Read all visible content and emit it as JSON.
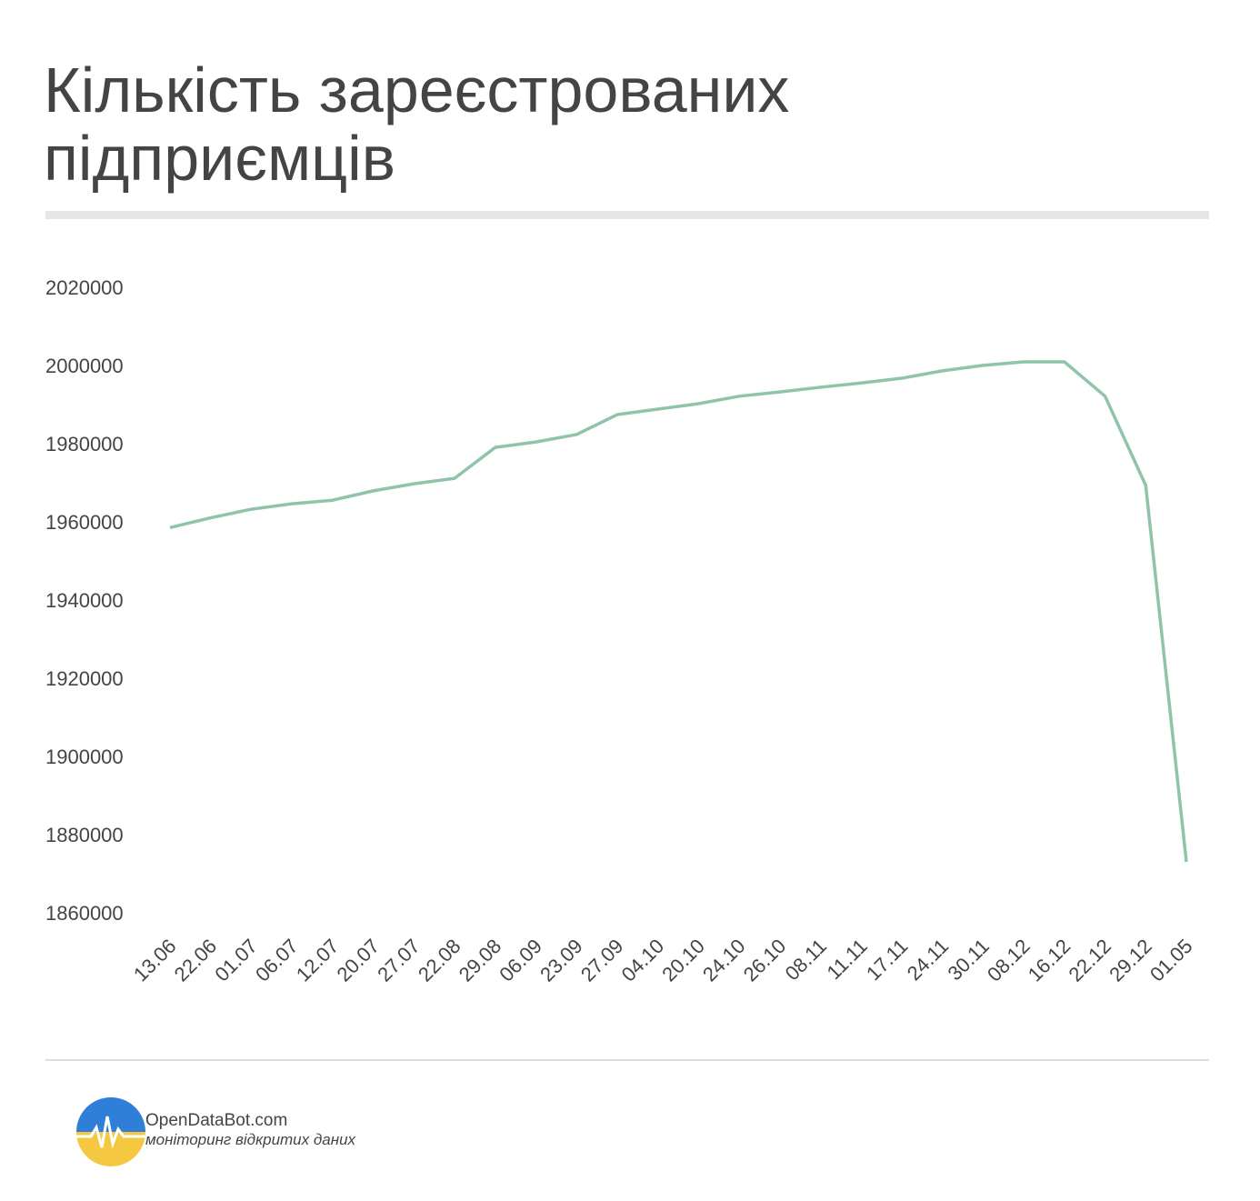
{
  "chart_data": {
    "type": "line",
    "title": "Кількість зареєстрованих підприємців",
    "categories": [
      "13.06",
      "22.06",
      "01.07",
      "06.07",
      "12.07",
      "20.07",
      "27.07",
      "22.08",
      "29.08",
      "06.09",
      "23.09",
      "27.09",
      "04.10",
      "20.10",
      "24.10",
      "26.10",
      "08.11",
      "11.11",
      "17.11",
      "24.11",
      "30.11",
      "08.12",
      "16.12",
      "22.12",
      "29.12",
      "01.05"
    ],
    "values": [
      1959000,
      1961500,
      1963700,
      1965100,
      1966000,
      1968400,
      1970200,
      1971600,
      1979500,
      1980900,
      1982800,
      1987900,
      1989300,
      1990700,
      1992600,
      1993700,
      1994900,
      1996000,
      1997200,
      1999100,
      2000500,
      2001400,
      2001400,
      1992600,
      1969800,
      1873500
    ],
    "color": "#8fc4a8",
    "ylim": [
      1860000,
      2020000
    ],
    "yticks": [
      1860000,
      1880000,
      1900000,
      1920000,
      1940000,
      1960000,
      1980000,
      2000000,
      2020000
    ],
    "grid": false
  },
  "footer": {
    "brand": "OpenDataBot.com",
    "tagline": "моніторинг відкритих даних"
  }
}
